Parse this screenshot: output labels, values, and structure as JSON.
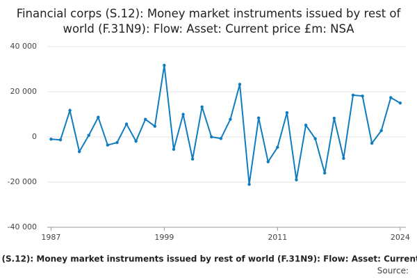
{
  "chart_data": {
    "type": "line",
    "title": "Financial corps (S.12): Money market instruments issued by rest of world (F.31N9): Flow: Asset: Current price £m: NSA",
    "source": "Source:",
    "x": [
      1987,
      1988,
      1989,
      1990,
      1991,
      1992,
      1993,
      1994,
      1995,
      1996,
      1997,
      1998,
      1999,
      2000,
      2001,
      2002,
      2003,
      2004,
      2005,
      2006,
      2007,
      2008,
      2009,
      2010,
      2011,
      2012,
      2013,
      2014,
      2015,
      2016,
      2017,
      2018,
      2019,
      2020,
      2021,
      2022,
      2023,
      2024
    ],
    "series": [
      {
        "name": "Value",
        "color": "#0f7cbf",
        "values": [
          -1000,
          -1300,
          11700,
          -6500,
          700,
          8700,
          -3600,
          -2500,
          5700,
          -1900,
          7800,
          4700,
          31700,
          -5500,
          10000,
          -9800,
          13300,
          0,
          -700,
          7800,
          23300,
          -21000,
          8400,
          -11000,
          -4600,
          10700,
          -19000,
          5200,
          -800,
          -16000,
          8300,
          -9500,
          18500,
          18100,
          -2800,
          2800,
          17400,
          15000
        ]
      }
    ],
    "xlim": [
      1986.6,
      2024.6
    ],
    "xticks": [
      1987,
      1999,
      2011,
      2024
    ],
    "ylim": [
      -40000,
      40000
    ],
    "yticks": [
      {
        "value": -40000,
        "label": "-40 000"
      },
      {
        "value": -20000,
        "label": "-20 000"
      },
      0,
      {
        "value": 20000,
        "label": "20 000"
      },
      {
        "value": 40000,
        "label": "40 000"
      }
    ],
    "grid": true
  }
}
